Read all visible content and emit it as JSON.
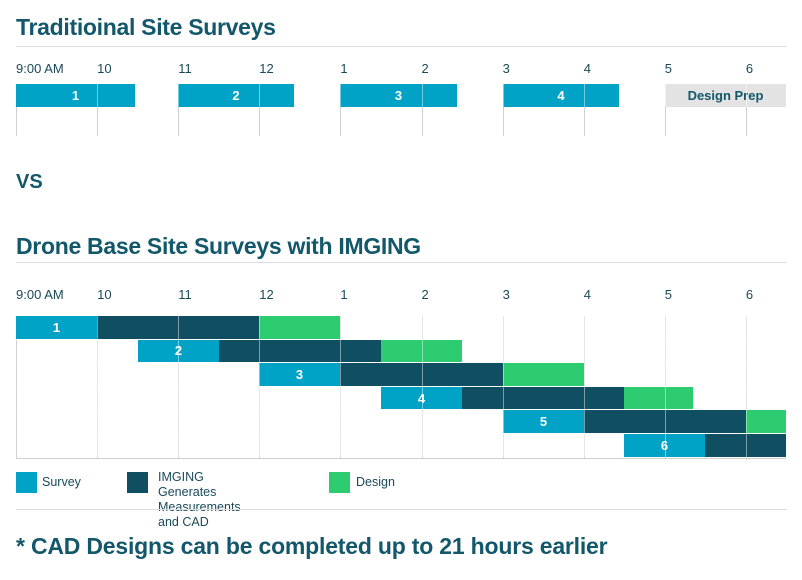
{
  "colors": {
    "survey": "#00a3c6",
    "imging": "#104e61",
    "design": "#2ecc71",
    "design_prep": "#e3e3e3",
    "heading": "#12576a"
  },
  "headings": {
    "traditional": "Traditioinal Site Surveys",
    "vs": "VS",
    "drone": "Drone Base Site Surveys with IMGING",
    "footer": "* CAD Designs can be completed up to 21 hours earlier"
  },
  "chart_data": [
    {
      "type": "gantt",
      "title": "Traditioinal Site Surveys",
      "x_unit": "hours since 9:00 AM",
      "xlim": [
        0,
        9.5
      ],
      "tick_labels": [
        "9:00 AM",
        "10",
        "11",
        "12",
        "1",
        "2",
        "3",
        "4",
        "5",
        "6"
      ],
      "tick_values": [
        0,
        1,
        2,
        3,
        4,
        5,
        6,
        7,
        8,
        9
      ],
      "rows": [
        {
          "segments": [
            {
              "label": "1",
              "category": "survey",
              "start": 0.0,
              "end": 1.47
            },
            {
              "label": "2",
              "category": "survey",
              "start": 2.0,
              "end": 3.43
            },
            {
              "label": "3",
              "category": "survey",
              "start": 4.0,
              "end": 5.44
            },
            {
              "label": "4",
              "category": "survey",
              "start": 6.0,
              "end": 7.44
            },
            {
              "label": "Design Prep",
              "category": "design_prep",
              "start": 8.0,
              "end": 9.5
            }
          ]
        }
      ]
    },
    {
      "type": "gantt",
      "title": "Drone Base Site Surveys with IMGING",
      "x_unit": "hours since 9:00 AM",
      "xlim": [
        0,
        9.5
      ],
      "tick_labels": [
        "9:00 AM",
        "10",
        "11",
        "12",
        "1",
        "2",
        "3",
        "4",
        "5",
        "6"
      ],
      "tick_values": [
        0,
        1,
        2,
        3,
        4,
        5,
        6,
        7,
        8,
        9
      ],
      "rows": [
        {
          "segments": [
            {
              "label": "1",
              "category": "survey",
              "start": 0.0,
              "end": 1.0
            },
            {
              "label": "",
              "category": "imging",
              "start": 1.0,
              "end": 3.0
            },
            {
              "label": "",
              "category": "design",
              "start": 3.0,
              "end": 4.0
            }
          ]
        },
        {
          "segments": [
            {
              "label": "2",
              "category": "survey",
              "start": 1.5,
              "end": 2.5
            },
            {
              "label": "",
              "category": "imging",
              "start": 2.5,
              "end": 4.5
            },
            {
              "label": "",
              "category": "design",
              "start": 4.5,
              "end": 5.5
            }
          ]
        },
        {
          "segments": [
            {
              "label": "3",
              "category": "survey",
              "start": 3.0,
              "end": 4.0
            },
            {
              "label": "",
              "category": "imging",
              "start": 4.0,
              "end": 6.0
            },
            {
              "label": "",
              "category": "design",
              "start": 6.0,
              "end": 7.0
            }
          ]
        },
        {
          "segments": [
            {
              "label": "4",
              "category": "survey",
              "start": 4.5,
              "end": 5.5
            },
            {
              "label": "",
              "category": "imging",
              "start": 5.5,
              "end": 7.5
            },
            {
              "label": "",
              "category": "design",
              "start": 7.5,
              "end": 8.35
            }
          ]
        },
        {
          "segments": [
            {
              "label": "5",
              "category": "survey",
              "start": 6.0,
              "end": 7.0
            },
            {
              "label": "",
              "category": "imging",
              "start": 7.0,
              "end": 9.0
            },
            {
              "label": "",
              "category": "design",
              "start": 9.0,
              "end": 9.5
            }
          ]
        },
        {
          "segments": [
            {
              "label": "6",
              "category": "survey",
              "start": 7.5,
              "end": 8.5
            },
            {
              "label": "",
              "category": "imging",
              "start": 8.5,
              "end": 9.5
            }
          ]
        }
      ],
      "legend": [
        {
          "category": "survey",
          "label": "Survey"
        },
        {
          "category": "imging",
          "label": "IMGING Generates\nMeasurements and CAD"
        },
        {
          "category": "design",
          "label": "Design"
        }
      ],
      "legend_position": "bottom"
    }
  ]
}
